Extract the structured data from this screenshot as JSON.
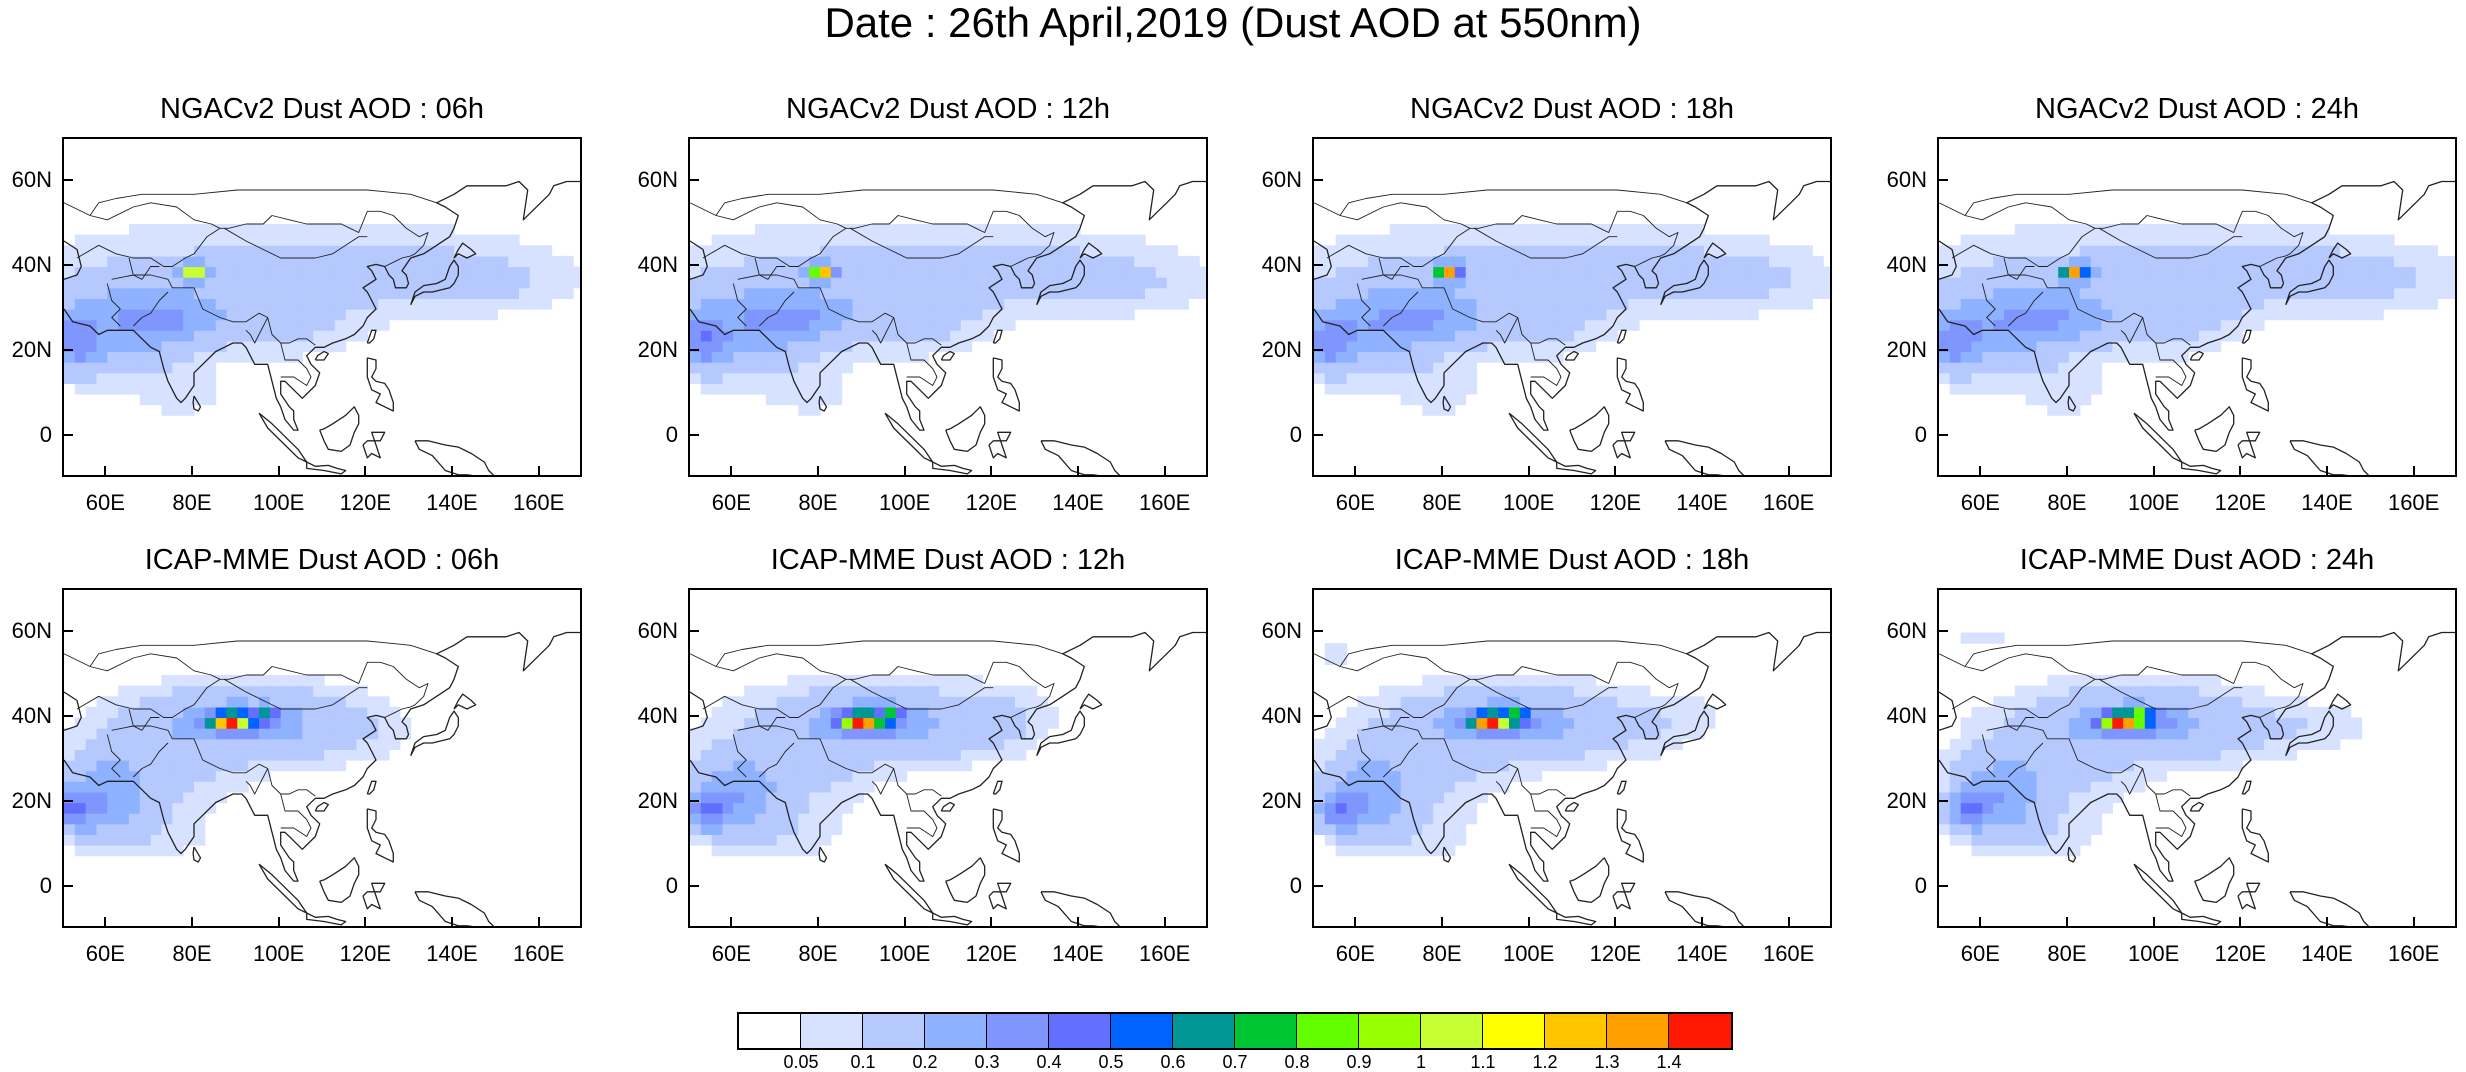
{
  "title": "Date : 26th April,2019 (Dust AOD at 550nm)",
  "panels": [
    {
      "title": "NGACv2 Dust AOD : 06h",
      "model": "NGAC",
      "hour": 6
    },
    {
      "title": "NGACv2 Dust AOD : 12h",
      "model": "NGAC",
      "hour": 12
    },
    {
      "title": "NGACv2 Dust AOD : 18h",
      "model": "NGAC",
      "hour": 18
    },
    {
      "title": "NGACv2 Dust AOD : 24h",
      "model": "NGAC",
      "hour": 24
    },
    {
      "title": "ICAP-MME Dust AOD : 06h",
      "model": "ICAP",
      "hour": 6
    },
    {
      "title": "ICAP-MME Dust AOD : 12h",
      "model": "ICAP",
      "hour": 12
    },
    {
      "title": "ICAP-MME Dust AOD : 18h",
      "model": "ICAP",
      "hour": 18
    },
    {
      "title": "ICAP-MME Dust AOD : 24h",
      "model": "ICAP",
      "hour": 24
    }
  ],
  "map": {
    "lon_range": [
      50,
      170
    ],
    "lat_range": [
      -10,
      70
    ],
    "lon_ticks": [
      60,
      80,
      100,
      120,
      140,
      160
    ],
    "lon_tick_labels": [
      "60E",
      "80E",
      "100E",
      "120E",
      "140E",
      "160E"
    ],
    "lat_ticks": [
      0,
      20,
      40,
      60
    ],
    "lat_tick_labels": [
      "0",
      "20N",
      "40N",
      "60N"
    ]
  },
  "colorbar": {
    "colors": [
      "#ffffff",
      "#d6e2ff",
      "#b5c9ff",
      "#8eb2ff",
      "#7f96ff",
      "#6370ff",
      "#0063ff",
      "#009696",
      "#00c633",
      "#63ff00",
      "#96ff00",
      "#c6ff33",
      "#ffff00",
      "#ffc600",
      "#ffa000",
      "#ff7c00",
      "#ff1900"
    ],
    "labels": [
      "0.05",
      "0.1",
      "0.2",
      "0.3",
      "0.4",
      "0.5",
      "0.6",
      "0.7",
      "0.8",
      "0.9",
      "1",
      "1.1",
      "1.2",
      "1.3",
      "1.4"
    ]
  }
}
